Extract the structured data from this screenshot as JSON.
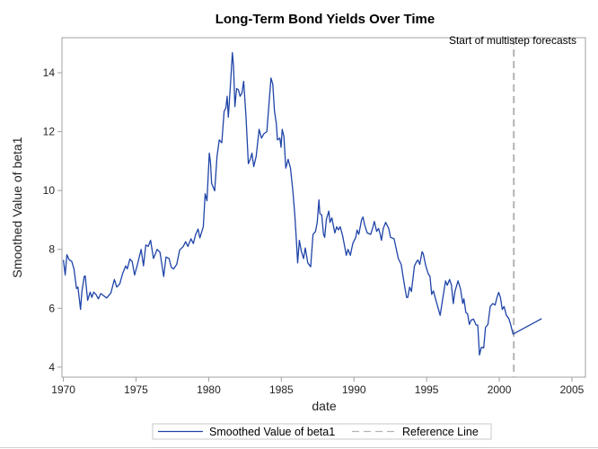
{
  "chart_data": {
    "type": "line",
    "title": "Long-Term Bond Yields Over Time",
    "xlabel": "date",
    "ylabel": "Smoothed Value of beta1",
    "xlim": [
      1969.9,
      2005.93
    ],
    "ylim": [
      3.66,
      15.19
    ],
    "xticks": [
      1970,
      1975,
      1980,
      1985,
      1990,
      1995,
      2000,
      2005
    ],
    "yticks": [
      4,
      6,
      8,
      10,
      12,
      14
    ],
    "grid": false,
    "legend_placement": "bottom",
    "colors": {
      "series": "#1f44a8",
      "reference": "#b4b4b4",
      "frame": "#a0a0a0"
    },
    "series": [
      {
        "name": "Smoothed Value of beta1",
        "x": [
          1970.0,
          1970.12,
          1970.24,
          1970.4,
          1970.57,
          1970.73,
          1970.9,
          1971.0,
          1971.18,
          1971.27,
          1971.43,
          1971.5,
          1971.67,
          1971.84,
          1971.96,
          1972.08,
          1972.24,
          1972.4,
          1972.57,
          1972.98,
          1973.27,
          1973.51,
          1973.67,
          1973.88,
          1974.08,
          1974.29,
          1974.4,
          1974.57,
          1974.73,
          1974.9,
          1975.1,
          1975.35,
          1975.51,
          1975.67,
          1975.84,
          1976.0,
          1976.2,
          1976.45,
          1976.65,
          1976.9,
          1977.06,
          1977.27,
          1977.43,
          1977.59,
          1977.8,
          1978.0,
          1978.25,
          1978.41,
          1978.57,
          1978.78,
          1978.94,
          1979.1,
          1979.27,
          1979.39,
          1979.63,
          1979.76,
          1979.88,
          1980.04,
          1980.12,
          1980.2,
          1980.41,
          1980.57,
          1980.73,
          1980.9,
          1981.06,
          1981.18,
          1981.27,
          1981.35,
          1981.51,
          1981.63,
          1981.71,
          1981.8,
          1981.92,
          1982.04,
          1982.16,
          1982.29,
          1982.41,
          1982.57,
          1982.73,
          1982.86,
          1982.98,
          1983.1,
          1983.27,
          1983.47,
          1983.63,
          1983.8,
          1984.0,
          1984.29,
          1984.41,
          1984.53,
          1984.65,
          1984.73,
          1984.9,
          1984.98,
          1985.06,
          1985.18,
          1985.31,
          1985.47,
          1985.63,
          1985.8,
          1985.92,
          1986.0,
          1986.12,
          1986.24,
          1986.37,
          1986.53,
          1986.65,
          1986.82,
          1987.02,
          1987.18,
          1987.35,
          1987.47,
          1987.59,
          1987.65,
          1987.78,
          1987.9,
          1987.98,
          1988.1,
          1988.27,
          1988.35,
          1988.48,
          1988.68,
          1988.81,
          1988.93,
          1989.05,
          1989.22,
          1989.47,
          1989.59,
          1989.75,
          1989.92,
          1990.12,
          1990.21,
          1990.33,
          1990.53,
          1990.62,
          1990.74,
          1990.91,
          1991.15,
          1991.28,
          1991.4,
          1991.56,
          1991.69,
          1991.81,
          1991.89,
          1992.02,
          1992.18,
          1992.39,
          1992.51,
          1992.76,
          1993.05,
          1993.25,
          1993.46,
          1993.62,
          1993.7,
          1993.83,
          1993.95,
          1994.16,
          1994.32,
          1994.4,
          1994.53,
          1994.69,
          1994.77,
          1994.94,
          1995.1,
          1995.23,
          1995.35,
          1995.47,
          1995.64,
          1995.93,
          1996.09,
          1996.3,
          1996.42,
          1996.58,
          1996.71,
          1996.83,
          1996.95,
          1997.16,
          1997.33,
          1997.49,
          1997.57,
          1997.7,
          1997.82,
          1997.94,
          1998.07,
          1998.23,
          1998.4,
          1998.52,
          1998.64,
          1998.77,
          1998.93,
          1999.05,
          1999.22,
          1999.38,
          1999.55,
          1999.71,
          1999.84,
          1999.96,
          2000.08,
          2000.21,
          2000.33,
          2000.49,
          2000.66,
          2000.78,
          2000.95,
          2002.92
        ],
        "y": [
          7.64,
          7.13,
          7.82,
          7.64,
          7.6,
          7.34,
          6.67,
          6.72,
          5.96,
          6.57,
          7.08,
          7.1,
          6.27,
          6.55,
          6.37,
          6.55,
          6.47,
          6.32,
          6.5,
          6.35,
          6.52,
          6.98,
          6.72,
          6.83,
          7.18,
          7.44,
          7.34,
          7.67,
          7.59,
          7.13,
          7.49,
          8.0,
          7.44,
          8.15,
          8.1,
          8.31,
          7.69,
          8.0,
          7.9,
          7.08,
          7.74,
          7.69,
          7.39,
          7.34,
          7.49,
          7.98,
          8.1,
          8.26,
          8.1,
          8.36,
          8.2,
          8.51,
          8.69,
          8.39,
          8.77,
          9.89,
          9.65,
          11.27,
          10.96,
          10.24,
          9.99,
          11.16,
          11.72,
          11.62,
          12.69,
          12.8,
          13.2,
          12.49,
          13.71,
          14.68,
          14.22,
          12.85,
          13.46,
          13.43,
          13.2,
          13.31,
          13.71,
          12.49,
          10.91,
          11.06,
          11.27,
          10.81,
          11.16,
          12.08,
          11.78,
          11.93,
          12.0,
          13.82,
          13.61,
          12.69,
          12.29,
          11.72,
          11.78,
          11.47,
          12.08,
          11.83,
          10.76,
          11.06,
          10.76,
          9.94,
          9.22,
          8.61,
          7.54,
          8.31,
          7.95,
          7.69,
          8.05,
          7.54,
          7.41,
          8.51,
          8.61,
          8.92,
          9.68,
          9.22,
          9.17,
          8.51,
          8.41,
          9.02,
          9.3,
          8.92,
          9.07,
          8.56,
          8.77,
          8.66,
          8.77,
          8.46,
          7.8,
          8.0,
          7.8,
          8.2,
          8.41,
          8.66,
          8.51,
          9.02,
          9.1,
          8.82,
          8.56,
          8.51,
          8.71,
          8.95,
          8.61,
          8.71,
          8.51,
          8.31,
          8.71,
          8.92,
          8.71,
          8.41,
          8.36,
          7.69,
          7.49,
          6.83,
          6.37,
          6.37,
          6.72,
          6.57,
          7.44,
          7.59,
          7.64,
          7.49,
          7.92,
          7.85,
          7.44,
          7.18,
          7.08,
          6.47,
          6.59,
          6.27,
          5.76,
          6.27,
          6.93,
          6.78,
          6.98,
          6.78,
          6.16,
          6.57,
          6.93,
          6.67,
          6.16,
          6.32,
          5.86,
          5.81,
          5.45,
          5.6,
          5.63,
          5.43,
          5.43,
          4.41,
          4.68,
          4.65,
          5.35,
          5.45,
          6.06,
          6.16,
          6.11,
          6.37,
          6.54,
          6.37,
          5.96,
          6.06,
          5.76,
          5.65,
          5.45,
          5.12,
          5.65
        ]
      }
    ],
    "reference_line": {
      "name": "Reference Line",
      "x": 2001.0,
      "label": "Start of multistep forecasts"
    },
    "legend": [
      "Smoothed Value of beta1",
      "Reference Line"
    ]
  }
}
